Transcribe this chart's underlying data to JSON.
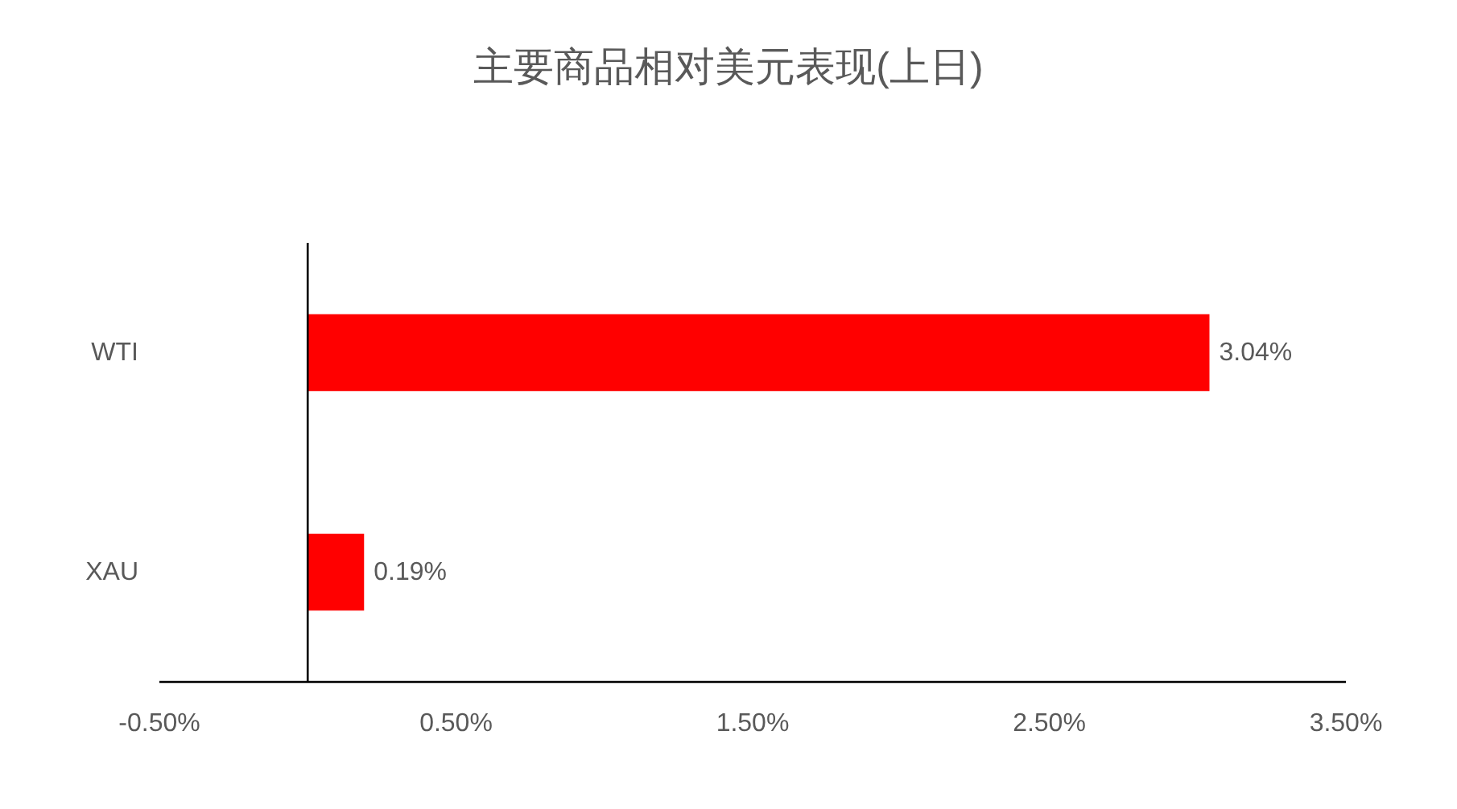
{
  "chart_data": {
    "type": "bar",
    "orientation": "horizontal",
    "title": "主要商品相对美元表现(上日)",
    "categories": [
      "WTI",
      "XAU"
    ],
    "values": [
      3.04,
      0.19
    ],
    "color": "#ff0000",
    "value_labels": [
      "3.04%",
      "0.19%"
    ],
    "xlim": [
      -0.5,
      3.5
    ],
    "xticks": [
      {
        "value": -0.5,
        "label": "-0.50%"
      },
      {
        "value": 0.5,
        "label": "0.50%"
      },
      {
        "value": 1.5,
        "label": "1.50%"
      },
      {
        "value": 2.5,
        "label": "2.50%"
      },
      {
        "value": 3.5,
        "label": "3.50%"
      }
    ]
  }
}
